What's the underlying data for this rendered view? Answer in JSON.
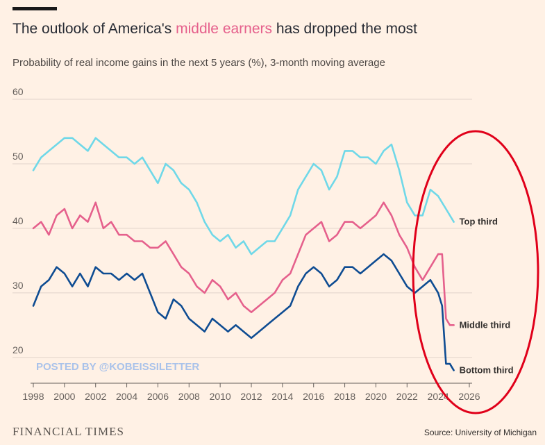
{
  "header": {
    "title_pre": "The outlook of America's ",
    "title_highlight": "middle earners",
    "title_post": " has dropped the most",
    "subtitle": "Probability of real income gains in the next 5 years (%), 3-month moving average"
  },
  "footer": {
    "brand": "FINANCIAL TIMES",
    "source": "Source: University of Michigan"
  },
  "watermark": "POSTED BY @KOBEISSILETTER",
  "colors": {
    "background": "#fff1e5",
    "grid": "#e0d3ca",
    "top_third": "#6fd8e8",
    "middle_third": "#e5608c",
    "bottom_third": "#0e4c92",
    "annotation": "#e0001a",
    "title_highlight": "#e5608c"
  },
  "chart_data": {
    "type": "line",
    "title": "The outlook of America's middle earners has dropped the most",
    "subtitle": "Probability of real income gains in the next 5 years (%), 3-month moving average",
    "xlabel": "",
    "ylabel": "",
    "xlim": [
      1998,
      2026
    ],
    "ylim": [
      16,
      60
    ],
    "x_ticks": [
      "1998",
      "2000",
      "2002",
      "2004",
      "2006",
      "2008",
      "2010",
      "2012",
      "2014",
      "2016",
      "2018",
      "2020",
      "2022",
      "2024",
      "2026"
    ],
    "y_ticks": [
      "20",
      "30",
      "40",
      "50",
      "60"
    ],
    "grid": "horizontal",
    "annotation": "red ellipse highlighting 2022-2025",
    "series": [
      {
        "name": "Top third",
        "x": [
          1998.0,
          1998.5,
          1999.0,
          1999.5,
          2000.0,
          2000.5,
          2001.0,
          2001.5,
          2002.0,
          2002.5,
          2003.0,
          2003.5,
          2004.0,
          2004.5,
          2005.0,
          2005.5,
          2006.0,
          2006.5,
          2007.0,
          2007.5,
          2008.0,
          2008.5,
          2009.0,
          2009.5,
          2010.0,
          2010.5,
          2011.0,
          2011.5,
          2012.0,
          2012.5,
          2013.0,
          2013.5,
          2014.0,
          2014.5,
          2015.0,
          2015.5,
          2016.0,
          2016.5,
          2017.0,
          2017.5,
          2018.0,
          2018.5,
          2019.0,
          2019.5,
          2020.0,
          2020.5,
          2021.0,
          2021.5,
          2022.0,
          2022.5,
          2023.0,
          2023.5,
          2024.0,
          2024.5,
          2025.0
        ],
        "values": [
          49,
          51,
          52,
          53,
          54,
          54,
          53,
          52,
          54,
          53,
          52,
          51,
          51,
          50,
          51,
          49,
          47,
          50,
          49,
          47,
          46,
          44,
          41,
          39,
          38,
          39,
          37,
          38,
          36,
          37,
          38,
          38,
          40,
          42,
          46,
          48,
          50,
          49,
          46,
          48,
          52,
          52,
          51,
          51,
          50,
          52,
          53,
          49,
          44,
          42,
          42,
          46,
          45,
          43,
          41
        ]
      },
      {
        "name": "Middle third",
        "x": [
          1998.0,
          1998.5,
          1999.0,
          1999.5,
          2000.0,
          2000.5,
          2001.0,
          2001.5,
          2002.0,
          2002.5,
          2003.0,
          2003.5,
          2004.0,
          2004.5,
          2005.0,
          2005.5,
          2006.0,
          2006.5,
          2007.0,
          2007.5,
          2008.0,
          2008.5,
          2009.0,
          2009.5,
          2010.0,
          2010.5,
          2011.0,
          2011.5,
          2012.0,
          2012.5,
          2013.0,
          2013.5,
          2014.0,
          2014.5,
          2015.0,
          2015.5,
          2016.0,
          2016.5,
          2017.0,
          2017.5,
          2018.0,
          2018.5,
          2019.0,
          2019.5,
          2020.0,
          2020.5,
          2021.0,
          2021.5,
          2022.0,
          2022.5,
          2023.0,
          2023.5,
          2024.0,
          2024.25,
          2024.5,
          2024.75,
          2025.0
        ],
        "values": [
          40,
          41,
          39,
          42,
          43,
          40,
          42,
          41,
          44,
          40,
          41,
          39,
          39,
          38,
          38,
          37,
          37,
          38,
          36,
          34,
          33,
          31,
          30,
          32,
          31,
          29,
          30,
          28,
          27,
          28,
          29,
          30,
          32,
          33,
          36,
          39,
          40,
          41,
          38,
          39,
          41,
          41,
          40,
          41,
          42,
          44,
          42,
          39,
          37,
          34,
          32,
          34,
          36,
          36,
          26,
          25,
          25
        ]
      },
      {
        "name": "Bottom third",
        "x": [
          1998.0,
          1998.5,
          1999.0,
          1999.5,
          2000.0,
          2000.5,
          2001.0,
          2001.5,
          2002.0,
          2002.5,
          2003.0,
          2003.5,
          2004.0,
          2004.5,
          2005.0,
          2005.5,
          2006.0,
          2006.5,
          2007.0,
          2007.5,
          2008.0,
          2008.5,
          2009.0,
          2009.5,
          2010.0,
          2010.5,
          2011.0,
          2011.5,
          2012.0,
          2012.5,
          2013.0,
          2013.5,
          2014.0,
          2014.5,
          2015.0,
          2015.5,
          2016.0,
          2016.5,
          2017.0,
          2017.5,
          2018.0,
          2018.5,
          2019.0,
          2019.5,
          2020.0,
          2020.5,
          2021.0,
          2021.5,
          2022.0,
          2022.5,
          2023.0,
          2023.5,
          2024.0,
          2024.25,
          2024.5,
          2024.75,
          2025.0
        ],
        "values": [
          28,
          31,
          32,
          34,
          33,
          31,
          33,
          31,
          34,
          33,
          33,
          32,
          33,
          32,
          33,
          30,
          27,
          26,
          29,
          28,
          26,
          25,
          24,
          26,
          25,
          24,
          25,
          24,
          23,
          24,
          25,
          26,
          27,
          28,
          31,
          33,
          34,
          33,
          31,
          32,
          34,
          34,
          33,
          34,
          35,
          36,
          35,
          33,
          31,
          30,
          31,
          32,
          30,
          28,
          19,
          19,
          18
        ]
      }
    ]
  }
}
